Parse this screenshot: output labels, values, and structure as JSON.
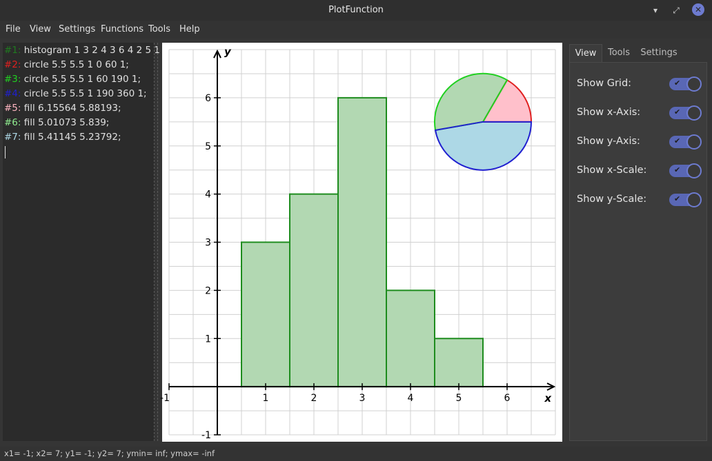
{
  "window": {
    "title": "PlotFunction",
    "minimize_glyph": "▾",
    "restore_glyph": "⤢",
    "close_glyph": "✕"
  },
  "menu": {
    "items": [
      "File",
      "View",
      "Settings",
      "Functions",
      "Tools",
      "Help"
    ]
  },
  "editor": {
    "lines": [
      {
        "tag": "#1:",
        "color": "#1f7a1f",
        "code": " histogram 1 3 2 4 3 6 4 2 5 1"
      },
      {
        "tag": "#2:",
        "color": "#e02020",
        "code": " circle 5.5 5.5 1 0 60 1;"
      },
      {
        "tag": "#3:",
        "color": "#20d020",
        "code": " circle 5.5 5.5 1 60 190 1;"
      },
      {
        "tag": "#4:",
        "color": "#2020d0",
        "code": " circle 5.5 5.5 1 190 360 1;"
      },
      {
        "tag": "#5:",
        "color": "#ffb6c1",
        "code": " fill 6.15564 5.88193;"
      },
      {
        "tag": "#6:",
        "color": "#90ee90",
        "code": " fill 5.01073 5.839;"
      },
      {
        "tag": "#7:",
        "color": "#add8e6",
        "code": " fill 5.41145 5.23792;"
      }
    ]
  },
  "sidepanel": {
    "tabs": [
      "View",
      "Tools",
      "Settings"
    ],
    "active_tab": "View",
    "options": [
      {
        "label": "Show Grid:",
        "on": true
      },
      {
        "label": "Show x-Axis:",
        "on": true
      },
      {
        "label": "Show y-Axis:",
        "on": true
      },
      {
        "label": "Show x-Scale:",
        "on": true
      },
      {
        "label": "Show y-Scale:",
        "on": true
      }
    ],
    "check_glyph": "✔"
  },
  "status": {
    "text": "x1= -1; x2= 7; y1= -1; y2= 7; ymin= inf; ymax= -inf"
  },
  "chart_data": {
    "type": "bar",
    "xlabel": "x",
    "ylabel": "y",
    "xlim": [
      -1,
      7
    ],
    "ylim": [
      -1,
      7
    ],
    "grid": true,
    "x_ticks": [
      "-1",
      "1",
      "2",
      "3",
      "4",
      "5",
      "6"
    ],
    "y_ticks": [
      "-1",
      "1",
      "2",
      "3",
      "4",
      "5",
      "6"
    ],
    "bars": [
      {
        "x": 1,
        "value": 3
      },
      {
        "x": 2,
        "value": 4
      },
      {
        "x": 3,
        "value": 6
      },
      {
        "x": 4,
        "value": 2
      },
      {
        "x": 5,
        "value": 1
      }
    ],
    "bar_fill": "#b2d8b2",
    "bar_stroke": "#1e8c1e",
    "pie": {
      "cx": 5.5,
      "cy": 5.5,
      "r": 1,
      "slices": [
        {
          "start": 0,
          "end": 60,
          "stroke": "#e02020",
          "fill": "#ffc0cb"
        },
        {
          "start": 60,
          "end": 190,
          "stroke": "#20d020",
          "fill": "#b2d8b2"
        },
        {
          "start": 190,
          "end": 360,
          "stroke": "#2020d0",
          "fill": "#add8e6"
        }
      ]
    }
  }
}
